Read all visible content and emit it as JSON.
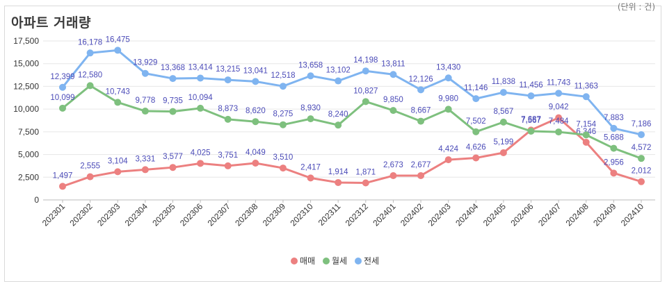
{
  "header": {
    "title": "아파트 거래량",
    "unit": "(단위 : 건)"
  },
  "chart_data": {
    "type": "line",
    "title": "아파트 거래량",
    "categories": [
      "202301",
      "202302",
      "202303",
      "202304",
      "202305",
      "202306",
      "202307",
      "202308",
      "202309",
      "202310",
      "202311",
      "202312",
      "202401",
      "202402",
      "202403",
      "202404",
      "202405",
      "202406",
      "202407",
      "202408",
      "202409",
      "202410"
    ],
    "series": [
      {
        "name": "매매",
        "color": "#ec8080",
        "values": [
          1497,
          2555,
          3104,
          3331,
          3577,
          4025,
          3751,
          4049,
          3510,
          2417,
          1914,
          1871,
          2673,
          2677,
          4424,
          4626,
          5199,
          7687,
          9042,
          6346,
          2956,
          2012
        ]
      },
      {
        "name": "월세",
        "color": "#7ec07e",
        "values": [
          10099,
          12580,
          10743,
          9778,
          9735,
          10094,
          8873,
          8620,
          8275,
          8930,
          8240,
          10827,
          9850,
          8667,
          9980,
          7502,
          8567,
          7567,
          7484,
          7154,
          5688,
          4572
        ]
      },
      {
        "name": "전세",
        "color": "#7fb4f0",
        "values": [
          12399,
          16178,
          16475,
          13929,
          13368,
          13414,
          13215,
          13041,
          12518,
          13658,
          13102,
          14198,
          13811,
          12126,
          13430,
          11146,
          11838,
          11456,
          11743,
          11363,
          7883,
          7186
        ]
      }
    ],
    "ylim": [
      0,
      17500
    ],
    "yticks": [
      "0",
      "2,500",
      "5,000",
      "7,500",
      "10,000",
      "12,500",
      "15,000",
      "17,500"
    ],
    "grid": true,
    "legend_position": "bottom"
  }
}
